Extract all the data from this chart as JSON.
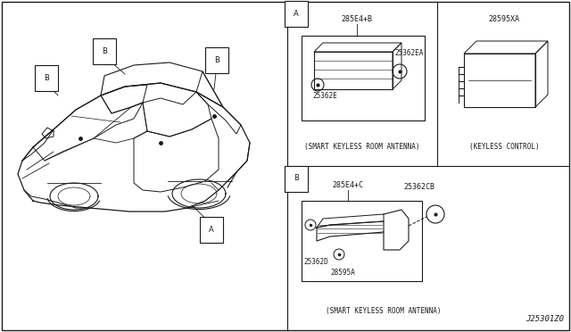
{
  "bg_color": "#ffffff",
  "line_color": "#1a1a1a",
  "diagram_id": "J25301Z0",
  "labels": {
    "section_A_marker": "A",
    "section_B_marker": "B",
    "section_A_part1": "285E4+B",
    "section_A_sub1": "25362EA",
    "section_A_sub2": "25362E",
    "section_A_caption": "(SMART KEYLESS ROOM ANTENNA)",
    "section_B_part1": "285E4+C",
    "section_B_sub1": "25362CB",
    "section_B_sub2": "25362D",
    "section_B_sub3": "28595A",
    "section_B_caption": "(SMART KEYLESS ROOM ANTENNA)",
    "keyless_part": "28595XA",
    "keyless_caption": "(KEYLESS CONTROL)",
    "car_label_A": "A",
    "car_label_B": "B"
  },
  "fs_label": 6.0,
  "fs_caption": 5.5,
  "fs_id": 6.5
}
